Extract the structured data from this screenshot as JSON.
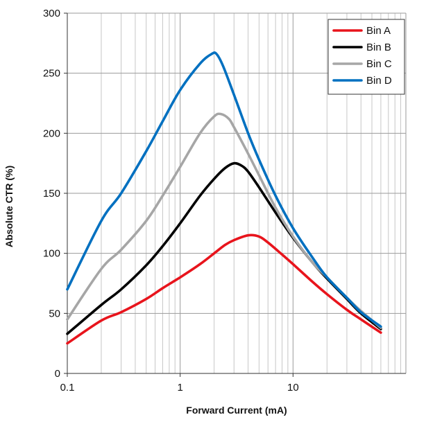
{
  "chart_data": {
    "type": "line",
    "title": "",
    "xlabel": "Forward Current (mA)",
    "ylabel": "Absolute CTR (%)",
    "x_scale": "log",
    "xlim": [
      0.1,
      100
    ],
    "ylim": [
      0,
      300
    ],
    "x_ticks": [
      {
        "value": 0.1,
        "label": "0.1"
      },
      {
        "value": 1,
        "label": "1"
      },
      {
        "value": 10,
        "label": "10"
      }
    ],
    "y_ticks": [
      {
        "value": 0,
        "label": "0"
      },
      {
        "value": 50,
        "label": "50"
      },
      {
        "value": 100,
        "label": "100"
      },
      {
        "value": 150,
        "label": "150"
      },
      {
        "value": 200,
        "label": "200"
      },
      {
        "value": 250,
        "label": "250"
      },
      {
        "value": 300,
        "label": "300"
      }
    ],
    "grid": true,
    "legend_position": "top-right",
    "series": [
      {
        "name": "Bin A",
        "color": "#e8141c",
        "points": [
          [
            0.1,
            25
          ],
          [
            0.2,
            44
          ],
          [
            0.3,
            51
          ],
          [
            0.5,
            62
          ],
          [
            0.7,
            71
          ],
          [
            1,
            80
          ],
          [
            1.5,
            91
          ],
          [
            2,
            100
          ],
          [
            2.5,
            107
          ],
          [
            3,
            111
          ],
          [
            4,
            115
          ],
          [
            5,
            114
          ],
          [
            6,
            109
          ],
          [
            8,
            99
          ],
          [
            10,
            91
          ],
          [
            15,
            76
          ],
          [
            20,
            66
          ],
          [
            30,
            53
          ],
          [
            40,
            45
          ],
          [
            60,
            34
          ]
        ]
      },
      {
        "name": "Bin B",
        "color": "#000000",
        "points": [
          [
            0.1,
            33
          ],
          [
            0.2,
            57
          ],
          [
            0.3,
            70
          ],
          [
            0.5,
            90
          ],
          [
            0.7,
            106
          ],
          [
            1,
            125
          ],
          [
            1.5,
            148
          ],
          [
            2,
            162
          ],
          [
            2.5,
            171
          ],
          [
            3,
            175
          ],
          [
            3.5,
            173
          ],
          [
            4,
            168
          ],
          [
            5,
            155
          ],
          [
            7,
            134
          ],
          [
            10,
            113
          ],
          [
            15,
            92
          ],
          [
            20,
            79
          ],
          [
            30,
            62
          ],
          [
            40,
            50
          ],
          [
            60,
            37
          ]
        ]
      },
      {
        "name": "Bin C",
        "color": "#a6a6a6",
        "points": [
          [
            0.1,
            45
          ],
          [
            0.2,
            87
          ],
          [
            0.3,
            103
          ],
          [
            0.5,
            127
          ],
          [
            0.7,
            148
          ],
          [
            1,
            172
          ],
          [
            1.5,
            200
          ],
          [
            2,
            214
          ],
          [
            2.3,
            216
          ],
          [
            2.7,
            212
          ],
          [
            3,
            205
          ],
          [
            4,
            183
          ],
          [
            5,
            165
          ],
          [
            7,
            138
          ],
          [
            10,
            114
          ],
          [
            15,
            92
          ],
          [
            20,
            80
          ],
          [
            30,
            63
          ],
          [
            40,
            52
          ],
          [
            60,
            38
          ]
        ]
      },
      {
        "name": "Bin D",
        "color": "#0070c0",
        "points": [
          [
            0.1,
            70
          ],
          [
            0.2,
            127
          ],
          [
            0.3,
            150
          ],
          [
            0.5,
            185
          ],
          [
            0.7,
            210
          ],
          [
            1,
            236
          ],
          [
            1.5,
            258
          ],
          [
            1.9,
            266
          ],
          [
            2.1,
            266
          ],
          [
            2.4,
            256
          ],
          [
            3,
            232
          ],
          [
            4,
            200
          ],
          [
            5,
            178
          ],
          [
            7,
            148
          ],
          [
            10,
            121
          ],
          [
            15,
            96
          ],
          [
            20,
            80
          ],
          [
            30,
            63
          ],
          [
            40,
            51
          ],
          [
            60,
            39
          ]
        ]
      }
    ]
  }
}
